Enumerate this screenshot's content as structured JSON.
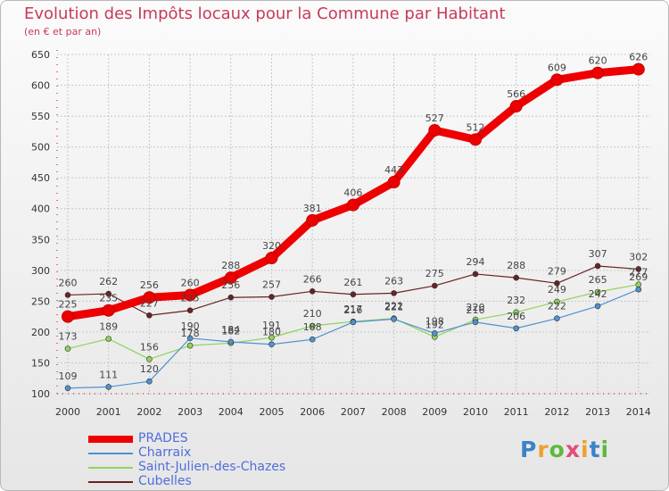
{
  "header": {
    "title": "Evolution des Impôts locaux pour la Commune par Habitant",
    "subtitle": "(en € et par an)"
  },
  "logo": {
    "letters": [
      "P",
      "r",
      "o",
      "x",
      "i",
      "t",
      "i"
    ],
    "colors": [
      "#3a83c9",
      "#f0a030",
      "#5fb840",
      "#e64a7a",
      "#f0a030",
      "#3a83c9",
      "#5fb840"
    ]
  },
  "chart_data": {
    "type": "line",
    "x": [
      "2000",
      "2001",
      "2002",
      "2003",
      "2004",
      "2005",
      "2006",
      "2007",
      "2008",
      "2009",
      "2010",
      "2011",
      "2012",
      "2013",
      "2014"
    ],
    "y_ticks": [
      "100",
      "150",
      "200",
      "250",
      "300",
      "350",
      "400",
      "450",
      "500",
      "550",
      "600",
      "650"
    ],
    "ylim": [
      100,
      650
    ],
    "grid": true,
    "legend_position": "bottom-left",
    "series": [
      {
        "name": "PRADES",
        "color": "#ee0000",
        "values": [
          225,
          235,
          256,
          260,
          288,
          320,
          381,
          406,
          443,
          527,
          512,
          566,
          609,
          620,
          626
        ]
      },
      {
        "name": "Charraix",
        "color": "#4f92d0",
        "values": [
          109,
          111,
          120,
          190,
          184,
          180,
          188,
          216,
          221,
          198,
          216,
          206,
          222,
          242,
          269
        ]
      },
      {
        "name": "Saint-Julien-des-Chazes",
        "color": "#8fd45b",
        "values": [
          173,
          189,
          156,
          178,
          182,
          191,
          210,
          217,
          222,
          192,
          220,
          232,
          249,
          265,
          277
        ]
      },
      {
        "name": "Cubelles",
        "color": "#6b2222",
        "values": [
          260,
          262,
          227,
          235,
          256,
          257,
          266,
          261,
          263,
          275,
          294,
          288,
          279,
          307,
          302
        ]
      }
    ]
  }
}
